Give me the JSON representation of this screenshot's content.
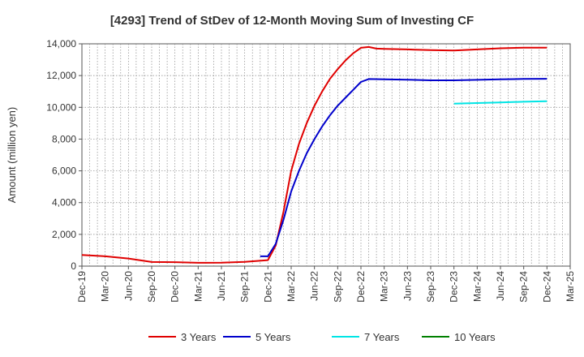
{
  "chart_data": {
    "type": "line",
    "title": "[4293]  Trend of StDev of 12-Month Moving Sum of Investing CF",
    "xlabel": "",
    "ylabel": "Amount (million yen)",
    "ylim": [
      0,
      14000
    ],
    "yticks": [
      0,
      2000,
      4000,
      6000,
      8000,
      10000,
      12000,
      14000
    ],
    "ytick_labels": [
      "0",
      "2,000",
      "4,000",
      "6,000",
      "8,000",
      "10,000",
      "12,000",
      "14,000"
    ],
    "xlim": [
      "2019-12",
      "2025-03"
    ],
    "xtick_labels": [
      "Dec-19",
      "Mar-20",
      "Jun-20",
      "Sep-20",
      "Dec-20",
      "Mar-21",
      "Jun-21",
      "Sep-21",
      "Dec-21",
      "Mar-22",
      "Jun-22",
      "Sep-22",
      "Dec-22",
      "Mar-23",
      "Jun-23",
      "Sep-23",
      "Dec-23",
      "Mar-24",
      "Jun-24",
      "Sep-24",
      "Dec-24",
      "Mar-25"
    ],
    "grid": true,
    "legend_position": "bottom",
    "series": [
      {
        "name": "3 Years",
        "color": "#e00000",
        "points": [
          [
            "2019-12",
            700
          ],
          [
            "2020-03",
            620
          ],
          [
            "2020-06",
            480
          ],
          [
            "2020-09",
            260
          ],
          [
            "2020-12",
            250
          ],
          [
            "2021-03",
            210
          ],
          [
            "2021-06",
            220
          ],
          [
            "2021-09",
            270
          ],
          [
            "2021-12",
            380
          ],
          [
            "2022-01",
            1300
          ],
          [
            "2022-02",
            3400
          ],
          [
            "2022-03",
            6000
          ],
          [
            "2022-04",
            7700
          ],
          [
            "2022-05",
            9000
          ],
          [
            "2022-06",
            10100
          ],
          [
            "2022-07",
            11000
          ],
          [
            "2022-08",
            11800
          ],
          [
            "2022-09",
            12400
          ],
          [
            "2022-10",
            12950
          ],
          [
            "2022-11",
            13400
          ],
          [
            "2022-12",
            13750
          ],
          [
            "2023-01",
            13800
          ],
          [
            "2023-02",
            13700
          ],
          [
            "2023-03",
            13680
          ],
          [
            "2023-06",
            13650
          ],
          [
            "2023-09",
            13600
          ],
          [
            "2023-12",
            13580
          ],
          [
            "2024-03",
            13650
          ],
          [
            "2024-06",
            13720
          ],
          [
            "2024-09",
            13760
          ],
          [
            "2024-12",
            13760
          ]
        ]
      },
      {
        "name": "5 Years",
        "color": "#0000cc",
        "points": [
          [
            "2021-11",
            620
          ],
          [
            "2021-12",
            620
          ],
          [
            "2022-01",
            1400
          ],
          [
            "2022-02",
            2900
          ],
          [
            "2022-03",
            4700
          ],
          [
            "2022-04",
            6000
          ],
          [
            "2022-05",
            7100
          ],
          [
            "2022-06",
            8000
          ],
          [
            "2022-07",
            8800
          ],
          [
            "2022-08",
            9500
          ],
          [
            "2022-09",
            10100
          ],
          [
            "2022-10",
            10600
          ],
          [
            "2022-11",
            11100
          ],
          [
            "2022-12",
            11600
          ],
          [
            "2023-01",
            11780
          ],
          [
            "2023-03",
            11760
          ],
          [
            "2023-06",
            11740
          ],
          [
            "2023-09",
            11700
          ],
          [
            "2023-12",
            11700
          ],
          [
            "2024-03",
            11730
          ],
          [
            "2024-06",
            11760
          ],
          [
            "2024-09",
            11790
          ],
          [
            "2024-12",
            11800
          ]
        ]
      },
      {
        "name": "7 Years",
        "color": "#00e5e5",
        "points": [
          [
            "2023-12",
            10230
          ],
          [
            "2024-03",
            10270
          ],
          [
            "2024-06",
            10310
          ],
          [
            "2024-09",
            10350
          ],
          [
            "2024-12",
            10380
          ]
        ]
      },
      {
        "name": "10 Years",
        "color": "#008000",
        "points": []
      }
    ]
  }
}
